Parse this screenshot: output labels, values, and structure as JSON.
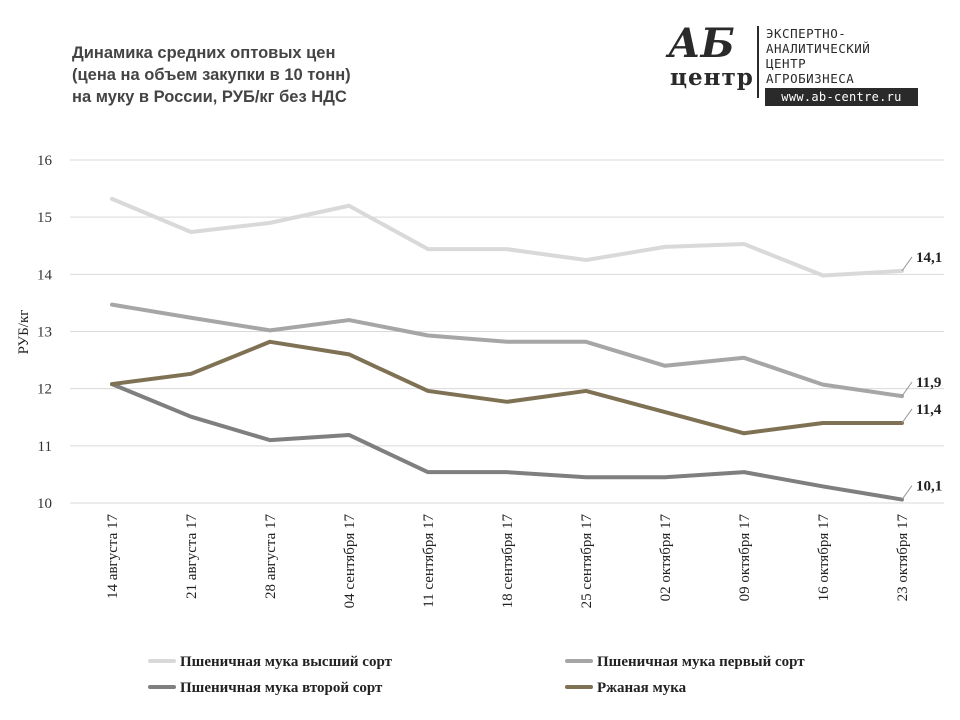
{
  "title_lines": [
    "Динамика средних оптовых цен",
    "(цена на объем закупки в 10 тонн)",
    "на муку в России, РУБ/кг без НДС"
  ],
  "logo": {
    "letters": "АБ",
    "word": "центр",
    "lines": [
      "ЭКСПЕРТНО-",
      "АНАЛИТИЧЕСКИЙ",
      "ЦЕНТР",
      "АГРОБИЗНЕСА"
    ],
    "url": "www.ab-centre.ru"
  },
  "chart_data": {
    "type": "line",
    "ylabel": "РУБ/кг",
    "ylim": [
      10,
      16
    ],
    "yticks": [
      "10",
      "11",
      "12",
      "13",
      "14",
      "15",
      "16"
    ],
    "grid": true,
    "legend_position": "bottom",
    "categories": [
      "14 августа 17",
      "21 августа 17",
      "28 августа 17",
      "04 сентября 17",
      "11 сентября 17",
      "18 сентября 17",
      "25 сентября 17",
      "02 октября 17",
      "09 октября 17",
      "16 октября 17",
      "23 октября 17"
    ],
    "series": [
      {
        "name": "Пшеничная мука высший сорт",
        "color": "#d9d9d9",
        "values": [
          15.32,
          14.74,
          14.9,
          15.2,
          14.44,
          14.44,
          14.25,
          14.48,
          14.53,
          13.98,
          14.06
        ],
        "end_label": "14,1"
      },
      {
        "name": "Пшеничная мука первый сорт",
        "color": "#a6a6a6",
        "values": [
          13.47,
          13.24,
          13.02,
          13.2,
          12.93,
          12.82,
          12.82,
          12.4,
          12.54,
          12.07,
          11.87
        ],
        "end_label": "11,9"
      },
      {
        "name": "Пшеничная мука второй сорт",
        "color": "#7f7f7f",
        "values": [
          12.08,
          11.51,
          11.1,
          11.19,
          10.54,
          10.54,
          10.45,
          10.45,
          10.54,
          10.29,
          10.06
        ],
        "end_label": "10,1"
      },
      {
        "name": "Ржаная мука",
        "color": "#7f7154",
        "values": [
          12.08,
          12.26,
          12.82,
          12.6,
          11.96,
          11.77,
          11.96,
          11.59,
          11.22,
          11.4,
          11.4
        ],
        "end_label": "11,4"
      }
    ]
  }
}
